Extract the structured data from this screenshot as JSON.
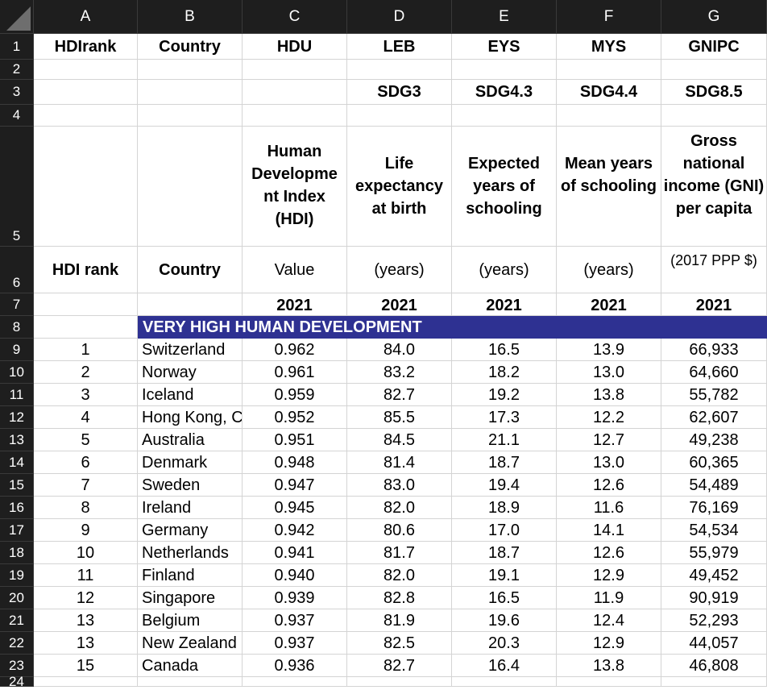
{
  "columns": [
    "A",
    "B",
    "C",
    "D",
    "E",
    "F",
    "G"
  ],
  "row_numbers": [
    "1",
    "2",
    "3",
    "4",
    "5",
    "6",
    "7",
    "8",
    "9",
    "10",
    "11",
    "12",
    "13",
    "14",
    "15",
    "16",
    "17",
    "18",
    "19",
    "20",
    "21",
    "22",
    "23",
    "24"
  ],
  "row1": {
    "a": "HDIrank",
    "b": "Country",
    "c": "HDU",
    "d": "LEB",
    "e": "EYS",
    "f": "MYS",
    "g": "GNIPC"
  },
  "row3": {
    "d": "SDG3",
    "e": "SDG4.3",
    "f": "SDG4.4",
    "g": "SDG8.5"
  },
  "row5": {
    "c": "Human Developme nt Index (HDI)",
    "d": "Life expectancy at birth",
    "e": "Expected years of schooling",
    "f": "Mean years of schooling",
    "g": "Gross national income (GNI) per capita"
  },
  "row6": {
    "a": "HDI rank",
    "b": "Country",
    "c": "Value",
    "d": "(years)",
    "e": "(years)",
    "f": "(years)",
    "g": "(2017 PPP $)"
  },
  "row7": {
    "c": "2021",
    "d": "2021",
    "e": "2021",
    "f": "2021",
    "g": "2021"
  },
  "band_label": "VERY HIGH HUMAN DEVELOPMENT",
  "rows": [
    {
      "rank": "1",
      "country": "Switzerland",
      "hdi": "0.962",
      "leb": "84.0",
      "eys": "16.5",
      "mys": "13.9",
      "gni": "66,933"
    },
    {
      "rank": "2",
      "country": "Norway",
      "hdi": "0.961",
      "leb": "83.2",
      "eys": "18.2",
      "mys": "13.0",
      "gni": "64,660"
    },
    {
      "rank": "3",
      "country": "Iceland",
      "hdi": "0.959",
      "leb": "82.7",
      "eys": "19.2",
      "mys": "13.8",
      "gni": "55,782"
    },
    {
      "rank": "4",
      "country": "Hong Kong, C",
      "hdi": "0.952",
      "leb": "85.5",
      "eys": "17.3",
      "mys": "12.2",
      "gni": "62,607"
    },
    {
      "rank": "5",
      "country": "Australia",
      "hdi": "0.951",
      "leb": "84.5",
      "eys": "21.1",
      "mys": "12.7",
      "gni": "49,238"
    },
    {
      "rank": "6",
      "country": "Denmark",
      "hdi": "0.948",
      "leb": "81.4",
      "eys": "18.7",
      "mys": "13.0",
      "gni": "60,365"
    },
    {
      "rank": "7",
      "country": "Sweden",
      "hdi": "0.947",
      "leb": "83.0",
      "eys": "19.4",
      "mys": "12.6",
      "gni": "54,489"
    },
    {
      "rank": "8",
      "country": "Ireland",
      "hdi": "0.945",
      "leb": "82.0",
      "eys": "18.9",
      "mys": "11.6",
      "gni": "76,169"
    },
    {
      "rank": "9",
      "country": "Germany",
      "hdi": "0.942",
      "leb": "80.6",
      "eys": "17.0",
      "mys": "14.1",
      "gni": "54,534"
    },
    {
      "rank": "10",
      "country": "Netherlands",
      "hdi": "0.941",
      "leb": "81.7",
      "eys": "18.7",
      "mys": "12.6",
      "gni": "55,979"
    },
    {
      "rank": "11",
      "country": "Finland",
      "hdi": "0.940",
      "leb": "82.0",
      "eys": "19.1",
      "mys": "12.9",
      "gni": "49,452"
    },
    {
      "rank": "12",
      "country": "Singapore",
      "hdi": "0.939",
      "leb": "82.8",
      "eys": "16.5",
      "mys": "11.9",
      "gni": "90,919"
    },
    {
      "rank": "13",
      "country": "Belgium",
      "hdi": "0.937",
      "leb": "81.9",
      "eys": "19.6",
      "mys": "12.4",
      "gni": "52,293"
    },
    {
      "rank": "13",
      "country": "New Zealand",
      "hdi": "0.937",
      "leb": "82.5",
      "eys": "20.3",
      "mys": "12.9",
      "gni": "44,057"
    },
    {
      "rank": "15",
      "country": "Canada",
      "hdi": "0.936",
      "leb": "82.7",
      "eys": "16.4",
      "mys": "13.8",
      "gni": "46,808"
    }
  ],
  "colors": {
    "header_bg": "#1e1e1e",
    "band_bg": "#2e3192",
    "gridline": "#d4d4d4"
  }
}
